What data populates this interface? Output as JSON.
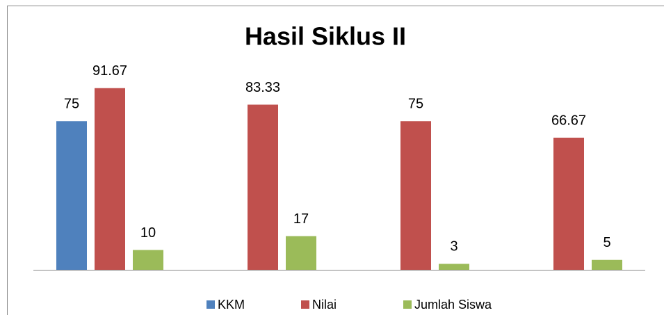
{
  "chart_data": {
    "type": "bar",
    "title": "Hasil Siklus II",
    "categories": [
      null,
      null,
      null,
      null
    ],
    "series": [
      {
        "name": "KKM",
        "color": "#4f81bd",
        "values": [
          75,
          null,
          null,
          null
        ]
      },
      {
        "name": "Nilai",
        "color": "#c0504d",
        "values": [
          91.67,
          83.33,
          75,
          66.67
        ]
      },
      {
        "name": "Jumlah Siswa",
        "color": "#9bbb59",
        "values": [
          10,
          17,
          3,
          5
        ]
      }
    ],
    "ylim": [
      0,
      100
    ],
    "legend": "bottom"
  }
}
